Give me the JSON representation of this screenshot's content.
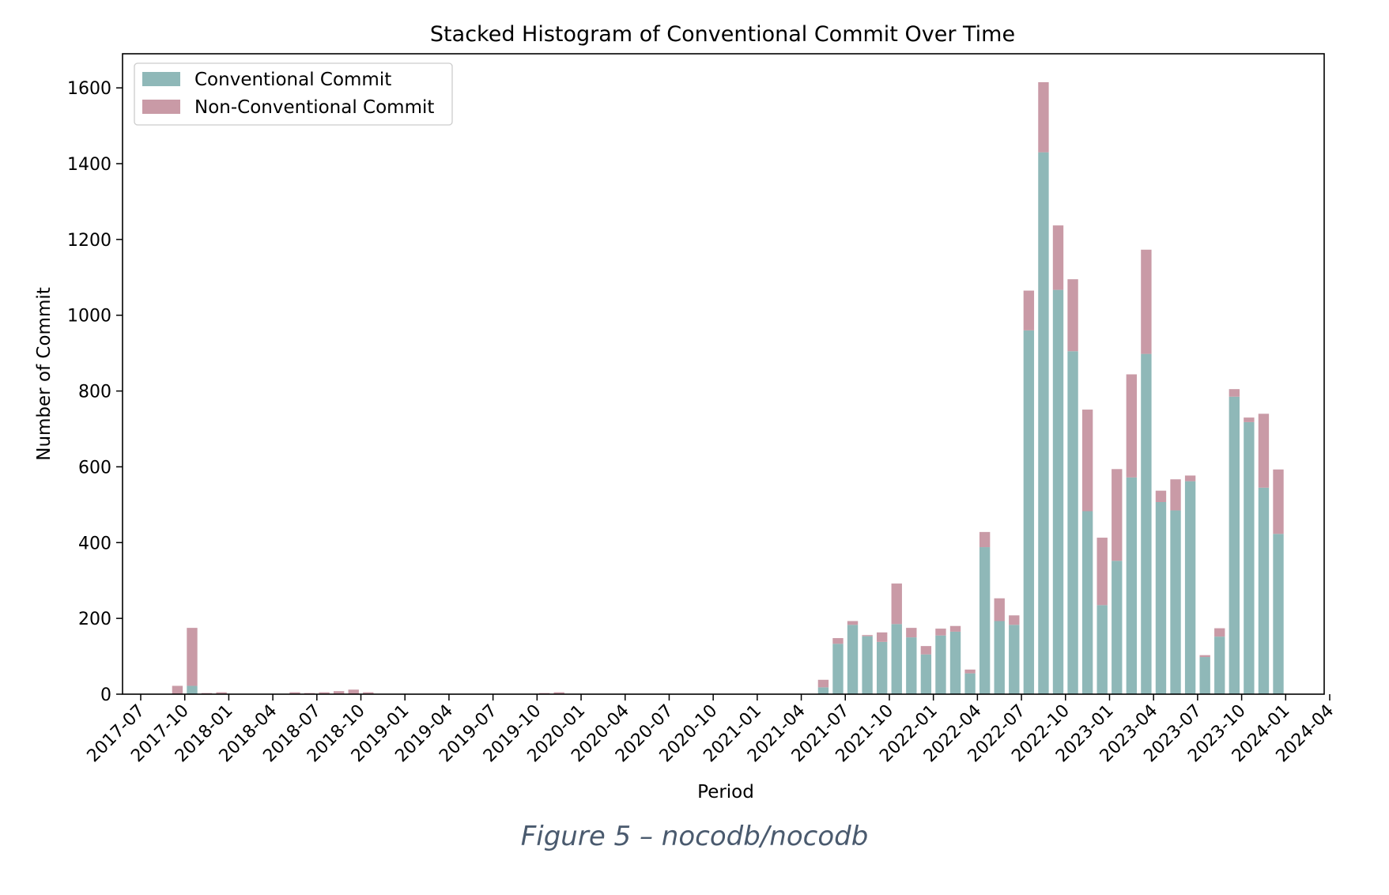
{
  "chart_data": {
    "type": "bar",
    "stacked": true,
    "title": "Stacked Histogram of Conventional Commit Over Time",
    "xlabel": "Period",
    "ylabel": "Number of Commit",
    "x_axis": {
      "ticks": [
        "2017-07",
        "2017-10",
        "2018-01",
        "2018-04",
        "2018-07",
        "2018-10",
        "2019-01",
        "2019-04",
        "2019-07",
        "2019-10",
        "2020-01",
        "2020-04",
        "2020-07",
        "2020-10",
        "2021-01",
        "2021-04",
        "2021-07",
        "2021-10",
        "2022-01",
        "2022-04",
        "2022-07",
        "2022-10",
        "2023-01",
        "2023-04",
        "2023-07",
        "2023-10",
        "2024-01",
        "2024-04"
      ],
      "range": [
        "2017-07",
        "2024-04"
      ]
    },
    "y_axis": {
      "ticks": [
        0,
        200,
        400,
        600,
        800,
        1000,
        1200,
        1400,
        1600
      ],
      "ylim": [
        0,
        1690
      ]
    },
    "grid": false,
    "legend": "upper-left",
    "categories": [
      "2017-09",
      "2017-10",
      "2017-11",
      "2017-12",
      "2018-05",
      "2018-06",
      "2018-07",
      "2018-08",
      "2018-09",
      "2018-10",
      "2019-10",
      "2019-11",
      "2021-05",
      "2021-06",
      "2021-07",
      "2021-08",
      "2021-09",
      "2021-10",
      "2021-11",
      "2021-12",
      "2022-01",
      "2022-02",
      "2022-03",
      "2022-04",
      "2022-05",
      "2022-06",
      "2022-07",
      "2022-08",
      "2022-09",
      "2022-10",
      "2022-11",
      "2022-12",
      "2023-01",
      "2023-02",
      "2023-03",
      "2023-04",
      "2023-05",
      "2023-06",
      "2023-07",
      "2023-08",
      "2023-09",
      "2023-10",
      "2023-11",
      "2023-12"
    ],
    "series": [
      {
        "name": "Conventional Commit",
        "color": "#8fb8b8",
        "values": [
          0,
          22,
          0,
          0,
          0,
          0,
          0,
          0,
          0,
          0,
          0,
          0,
          18,
          133,
          183,
          153,
          138,
          185,
          150,
          105,
          155,
          165,
          55,
          388,
          193,
          183,
          960,
          1430,
          1067,
          905,
          483,
          235,
          352,
          572,
          898,
          507,
          485,
          562,
          98,
          152,
          785,
          718,
          545,
          423
        ]
      },
      {
        "name": "Non-Conventional Commit",
        "color": "#c99aa6",
        "values": [
          22,
          153,
          3,
          5,
          5,
          3,
          5,
          8,
          12,
          5,
          3,
          5,
          20,
          15,
          10,
          3,
          25,
          107,
          25,
          22,
          18,
          15,
          10,
          40,
          60,
          25,
          105,
          185,
          170,
          190,
          268,
          178,
          242,
          272,
          275,
          30,
          82,
          15,
          5,
          22,
          20,
          12,
          195,
          170
        ]
      }
    ],
    "colors": {
      "conventional": "#8fb8b8",
      "non_conventional": "#c99aa6",
      "axis": "#000000"
    }
  },
  "caption": "Figure 5 – nocodb/nocodb"
}
